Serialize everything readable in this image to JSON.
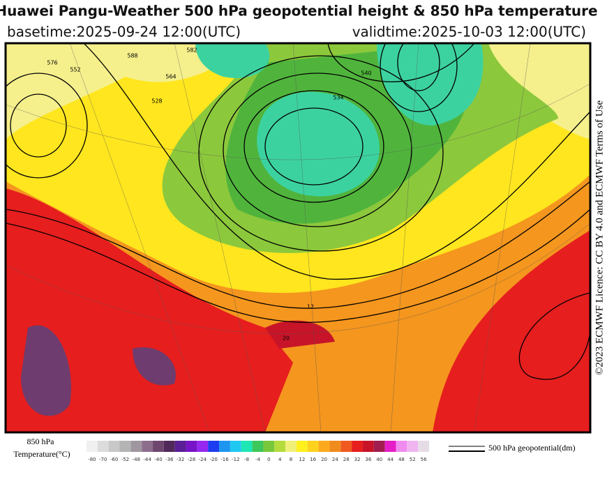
{
  "header": {
    "title": "Huawei Pangu-Weather 500 hPa geopotential height & 850 hPa temperature",
    "basetime": "basetime:2025-09-24 12:00(UTC)",
    "validtime": "validtime:2025-10-03 12:00(UTC)"
  },
  "license": "©2023 ECMWF Licence: CC BY 4.0 and ECMWF Terms of Use",
  "map": {
    "contour_labels": [
      "576",
      "552",
      "564",
      "528",
      "540",
      "534",
      "582",
      "588",
      "12",
      "20"
    ]
  },
  "legend": {
    "temperature_label_line1": "850 hPa",
    "temperature_label_line2": "Temperature(°C)",
    "geopotential_label": "500 hPa geopotential(dm)",
    "colorbar": {
      "ticks": [
        -80,
        -70,
        -60,
        -52,
        -48,
        -44,
        -40,
        -36,
        -32,
        -28,
        -24,
        -20,
        -16,
        -12,
        -8,
        -4,
        0,
        4,
        8,
        12,
        16,
        20,
        24,
        28,
        32,
        36,
        40,
        44,
        48,
        52,
        56
      ],
      "colors": [
        "#f0f0f0",
        "#dcdcdc",
        "#c8c8c8",
        "#b4b4b4",
        "#a096a0",
        "#8c6e8c",
        "#6e466e",
        "#50285a",
        "#5a1e96",
        "#7814c8",
        "#9628f0",
        "#1e3cf0",
        "#1e96f0",
        "#1ec8f0",
        "#1ee6b4",
        "#3cc85a",
        "#78c83c",
        "#b4dc3c",
        "#f0f078",
        "#fff01e",
        "#ffd21e",
        "#ffaa1e",
        "#f08c1e",
        "#f05a1e",
        "#e61e1e",
        "#c81428",
        "#a01e50",
        "#e61ec8",
        "#f08cf0",
        "#f0b4f0",
        "#e6dce6"
      ]
    }
  }
}
